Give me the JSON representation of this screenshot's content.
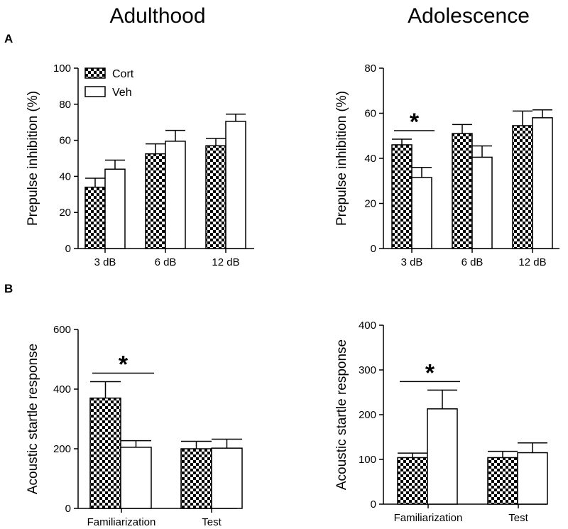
{
  "figure": {
    "column_titles": [
      "Adulthood",
      "Adolescence"
    ],
    "panel_labels": [
      "A",
      "B"
    ],
    "legend": [
      {
        "label": "Cort",
        "pattern": "checker"
      },
      {
        "label": "Veh",
        "pattern": "open"
      }
    ],
    "colors": {
      "ink": "#000000",
      "paper": "#ffffff"
    }
  },
  "chart_data": [
    {
      "id": "A-adulthood",
      "type": "bar",
      "ylabel": "Prepulse inhibition (%)",
      "ylim": [
        0,
        100
      ],
      "yticks": [
        0,
        20,
        40,
        60,
        80,
        100
      ],
      "categories": [
        "3 dB",
        "6 dB",
        "12 dB"
      ],
      "series": [
        {
          "name": "Cort",
          "values": [
            34,
            52.5,
            57
          ],
          "errors": [
            5,
            5.5,
            4
          ]
        },
        {
          "name": "Veh",
          "values": [
            44,
            59.5,
            70.5
          ],
          "errors": [
            5,
            6,
            4
          ]
        }
      ],
      "significance": [],
      "legend": true
    },
    {
      "id": "A-adolescence",
      "type": "bar",
      "ylabel": "Prepulse inhibition (%)",
      "ylim": [
        0,
        80
      ],
      "yticks": [
        0,
        20,
        40,
        60,
        80
      ],
      "categories": [
        "3 dB",
        "6 dB",
        "12 dB"
      ],
      "series": [
        {
          "name": "Cort",
          "values": [
            46,
            51,
            54.5
          ],
          "errors": [
            2.5,
            4,
            6.5
          ]
        },
        {
          "name": "Veh",
          "values": [
            31.5,
            40.5,
            58
          ],
          "errors": [
            4.5,
            5,
            3.5
          ]
        }
      ],
      "significance": [
        {
          "category": 0,
          "label": "*"
        }
      ],
      "legend": false
    },
    {
      "id": "B-adulthood",
      "type": "bar",
      "ylabel": "Acoustic startle response",
      "ylim": [
        0,
        600
      ],
      "yticks": [
        0,
        200,
        400,
        600
      ],
      "categories": [
        "Familiarization",
        "Test"
      ],
      "series": [
        {
          "name": "Cort",
          "values": [
            370,
            200
          ],
          "errors": [
            55,
            25
          ]
        },
        {
          "name": "Veh",
          "values": [
            205,
            202
          ],
          "errors": [
            22,
            30
          ]
        }
      ],
      "significance": [
        {
          "category": 0,
          "label": "*"
        }
      ],
      "legend": false
    },
    {
      "id": "B-adolescence",
      "type": "bar",
      "ylabel": "Acoustic startle response",
      "ylim": [
        0,
        400
      ],
      "yticks": [
        0,
        100,
        200,
        300,
        400
      ],
      "categories": [
        "Familiarization",
        "Test"
      ],
      "series": [
        {
          "name": "Cort",
          "values": [
            104,
            104
          ],
          "errors": [
            10,
            14
          ]
        },
        {
          "name": "Veh",
          "values": [
            213,
            115
          ],
          "errors": [
            42,
            22
          ]
        }
      ],
      "significance": [
        {
          "category": 0,
          "label": "*"
        }
      ],
      "legend": false
    }
  ]
}
